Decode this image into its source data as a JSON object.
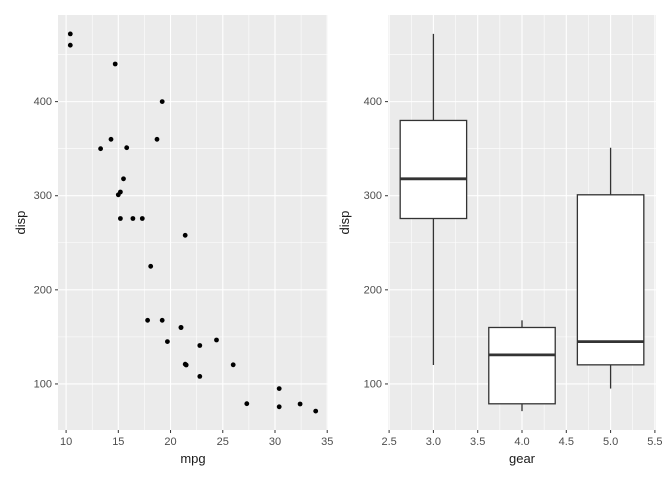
{
  "theme": {
    "figure_bg": "#FFFFFF",
    "panel_bg": "#EBEBEB",
    "grid_major_color": "#FFFFFF",
    "grid_minor_color": "#FFFFFF",
    "axis_text_color": "#4D4D4D",
    "axis_title_color": "#1A1A1A",
    "tick_mark_color": "#333333",
    "point_color": "#000000",
    "box_stroke_color": "#333333",
    "box_fill_color": "#FFFFFF"
  },
  "chart_data": [
    {
      "type": "scatter",
      "title": "",
      "xlabel": "mpg",
      "ylabel": "disp",
      "xlim": [
        9.225,
        35.075
      ],
      "ylim": [
        51.06,
        492.05
      ],
      "grid": true,
      "legend": "none",
      "x_ticks": {
        "values": [
          10,
          15,
          20,
          25,
          30,
          35
        ],
        "labels": [
          "10",
          "15",
          "20",
          "25",
          "30",
          "35"
        ]
      },
      "y_ticks": {
        "values": [
          100,
          200,
          300,
          400
        ],
        "labels": [
          "100",
          "200",
          "300",
          "400"
        ]
      },
      "x_minor": [
        12.5,
        17.5,
        22.5,
        27.5,
        32.5
      ],
      "y_minor": [
        150,
        250,
        350,
        450
      ],
      "points": [
        [
          21.0,
          160.0
        ],
        [
          21.0,
          160.0
        ],
        [
          22.8,
          108.0
        ],
        [
          21.4,
          258.0
        ],
        [
          18.7,
          360.0
        ],
        [
          18.1,
          225.0
        ],
        [
          14.3,
          360.0
        ],
        [
          24.4,
          146.7
        ],
        [
          22.8,
          140.8
        ],
        [
          19.2,
          167.6
        ],
        [
          17.8,
          167.6
        ],
        [
          16.4,
          275.8
        ],
        [
          17.3,
          275.8
        ],
        [
          15.2,
          275.8
        ],
        [
          10.4,
          472.0
        ],
        [
          10.4,
          460.0
        ],
        [
          14.7,
          440.0
        ],
        [
          32.4,
          78.7
        ],
        [
          30.4,
          75.7
        ],
        [
          33.9,
          71.1
        ],
        [
          21.5,
          120.1
        ],
        [
          15.5,
          318.0
        ],
        [
          15.2,
          304.0
        ],
        [
          13.3,
          350.0
        ],
        [
          19.2,
          400.0
        ],
        [
          27.3,
          79.0
        ],
        [
          26.0,
          120.3
        ],
        [
          30.4,
          95.1
        ],
        [
          15.8,
          351.0
        ],
        [
          19.7,
          145.0
        ],
        [
          15.0,
          301.0
        ],
        [
          21.4,
          121.0
        ]
      ]
    },
    {
      "type": "boxplot",
      "title": "",
      "xlabel": "gear",
      "ylabel": "disp",
      "xlim": [
        2.4875,
        5.5125
      ],
      "ylim": [
        51.06,
        492.05
      ],
      "grid": true,
      "legend": "none",
      "x_ticks": {
        "values": [
          2.5,
          3.0,
          3.5,
          4.0,
          4.5,
          5.0,
          5.5
        ],
        "labels": [
          "2.5",
          "3.0",
          "3.5",
          "4.0",
          "4.5",
          "5.0",
          "5.5"
        ]
      },
      "y_ticks": {
        "values": [
          100,
          200,
          300,
          400
        ],
        "labels": [
          "100",
          "200",
          "300",
          "400"
        ]
      },
      "x_minor": [
        2.75,
        3.25,
        3.75,
        4.25,
        4.75,
        5.25
      ],
      "y_minor": [
        150,
        250,
        350,
        450
      ],
      "box_width": 0.75,
      "boxes": [
        {
          "x": 3,
          "lower_whisker": 120.1,
          "q1": 275.8,
          "median": 318.0,
          "q3": 380.0,
          "upper_whisker": 472.0
        },
        {
          "x": 4,
          "lower_whisker": 71.1,
          "q1": 78.9,
          "median": 130.9,
          "q3": 160.0,
          "upper_whisker": 167.6
        },
        {
          "x": 5,
          "lower_whisker": 95.1,
          "q1": 120.3,
          "median": 145.0,
          "q3": 301.0,
          "upper_whisker": 351.0
        }
      ]
    }
  ]
}
